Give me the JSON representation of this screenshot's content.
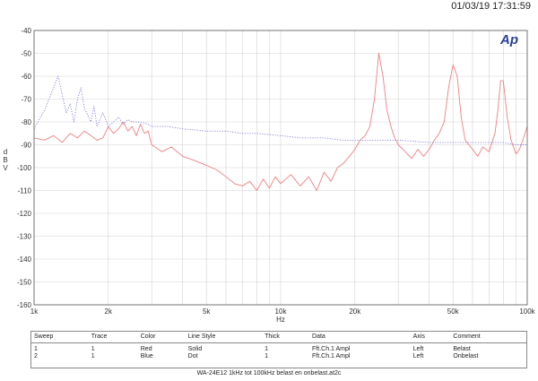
{
  "timestamp": "01/03/19 17:31:59",
  "logo": "Ap",
  "footer": "WA-24E12 1kHz tot 100kHz belast en onbelast.at2c",
  "legend": {
    "headers": [
      "Sweep",
      "Trace",
      "Color",
      "Line Style",
      "Thick",
      "Data",
      "Axis",
      "Comment"
    ],
    "rows": [
      [
        "1",
        "1",
        "Red",
        "Solid",
        "1",
        "Fft.Ch.1 Ampl",
        "Left",
        "Belast"
      ],
      [
        "2",
        "1",
        "Blue",
        "Dot",
        "1",
        "Fft.Ch.1 Ampl",
        "Left",
        "Onbelast"
      ]
    ]
  },
  "colors": {
    "red": "#f08080",
    "blue": "#7f7fd8",
    "grid": "#d2d2d2"
  },
  "chart_data": {
    "type": "line",
    "xlabel": "Hz",
    "ylabel": "dBV",
    "xscale": "log",
    "xlim": [
      1000,
      100000
    ],
    "ylim": [
      -160,
      -40
    ],
    "grid": true,
    "x_ticks": [
      {
        "value": 1000,
        "label": "1k"
      },
      {
        "value": 2000,
        "label": "2k"
      },
      {
        "value": 5000,
        "label": "5k"
      },
      {
        "value": 10000,
        "label": "10k"
      },
      {
        "value": 20000,
        "label": "20k"
      },
      {
        "value": 50000,
        "label": "50k"
      },
      {
        "value": 100000,
        "label": "100k"
      }
    ],
    "y_ticks": [
      "-40",
      "-50",
      "-60",
      "-70",
      "-80",
      "-90",
      "-100",
      "-110",
      "-120",
      "-130",
      "-140",
      "-150",
      "-160"
    ],
    "series": [
      {
        "name": "Belast",
        "color": "#f08080",
        "style": "solid",
        "x": [
          1000,
          1100,
          1200,
          1300,
          1400,
          1500,
          1600,
          1700,
          1800,
          1900,
          2000,
          2100,
          2200,
          2300,
          2400,
          2500,
          2600,
          2700,
          2800,
          2900,
          3000,
          3300,
          3600,
          4000,
          4500,
          5000,
          5500,
          6000,
          6500,
          7000,
          7500,
          8000,
          8500,
          9000,
          9500,
          10000,
          11000,
          12000,
          13000,
          14000,
          15000,
          16000,
          17000,
          18000,
          19000,
          20000,
          21000,
          22000,
          23000,
          24000,
          25000,
          26000,
          27000,
          28000,
          29000,
          30000,
          32000,
          34000,
          36000,
          38000,
          40000,
          42000,
          44000,
          46000,
          48000,
          50000,
          52000,
          54000,
          56000,
          58000,
          60000,
          63000,
          66000,
          70000,
          74000,
          76000,
          78000,
          80000,
          83000,
          86000,
          90000,
          93000,
          96000,
          100000
        ],
        "y": [
          -87,
          -88,
          -86,
          -89,
          -85,
          -87,
          -84,
          -86,
          -88,
          -87,
          -82,
          -85,
          -83,
          -80,
          -84,
          -82,
          -86,
          -81,
          -85,
          -84,
          -90,
          -93,
          -91,
          -95,
          -97,
          -99,
          -101,
          -104,
          -107,
          -108,
          -106,
          -110,
          -105,
          -109,
          -104,
          -107,
          -103,
          -108,
          -104,
          -110,
          -102,
          -106,
          -100,
          -98,
          -95,
          -92,
          -88,
          -86,
          -82,
          -70,
          -50,
          -60,
          -75,
          -82,
          -87,
          -90,
          -93,
          -96,
          -92,
          -95,
          -92,
          -88,
          -85,
          -80,
          -65,
          -55,
          -60,
          -78,
          -88,
          -90,
          -92,
          -95,
          -91,
          -93,
          -85,
          -75,
          -62,
          -62,
          -78,
          -88,
          -94,
          -92,
          -88,
          -82
        ]
      },
      {
        "name": "Onbelast",
        "color": "#7f7fd8",
        "style": "dot",
        "x": [
          1000,
          1100,
          1150,
          1200,
          1250,
          1300,
          1350,
          1400,
          1450,
          1500,
          1550,
          1600,
          1700,
          1750,
          1800,
          1900,
          2000,
          2100,
          2200,
          2300,
          2400,
          2500,
          2700,
          2900,
          3000,
          3200,
          3500,
          4000,
          5000,
          6000,
          7000,
          8000,
          10000,
          12000,
          15000,
          18000,
          20000,
          25000,
          30000,
          40000,
          50000,
          60000,
          70000,
          80000,
          90000,
          100000
        ],
        "y": [
          -83,
          -75,
          -70,
          -65,
          -60,
          -68,
          -76,
          -72,
          -80,
          -70,
          -65,
          -74,
          -80,
          -73,
          -82,
          -76,
          -82,
          -80,
          -78,
          -81,
          -79,
          -80,
          -80,
          -81,
          -82,
          -82,
          -82,
          -83,
          -84,
          -84,
          -85,
          -85,
          -86,
          -87,
          -87,
          -88,
          -88,
          -88,
          -88,
          -89,
          -89,
          -89,
          -89,
          -89,
          -90,
          -90
        ]
      }
    ]
  }
}
